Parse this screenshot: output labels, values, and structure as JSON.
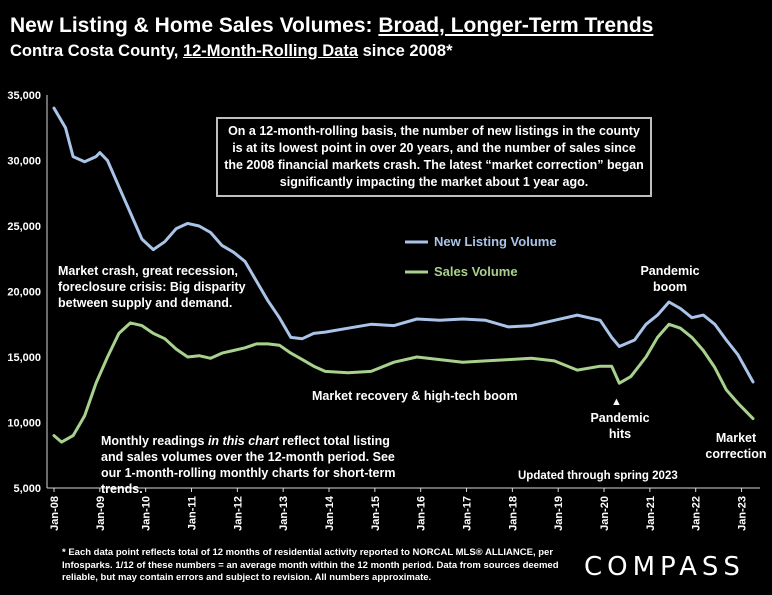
{
  "header": {
    "title_prefix": "New Listing & Home Sales Volumes: ",
    "title_underlined": "Broad, Longer-Term Trends",
    "subtitle_prefix": "Contra Costa County, ",
    "subtitle_underlined": "12-Month-Rolling Data",
    "subtitle_suffix": " since 2008*"
  },
  "annotations": {
    "box_note": "On a 12-month-rolling basis, the number of new listings in the county is at its lowest point in over 20 years, and the number of sales since the 2008 financial markets crash. The latest “market correction” began significantly impacting the market about 1 year ago.",
    "market_crash": "Market crash,  great recession, foreclosure crisis: Big disparity between supply and demand.",
    "recovery": "Market recovery & high-tech boom",
    "pandemic_hits": "Pandemic hits",
    "pandemic_boom": "Pandemic boom",
    "market_correction": "Market correction",
    "monthly_prefix": "Monthly readings ",
    "monthly_italic": "in this chart",
    "monthly_suffix": " reflect total listing and sales volumes over the 12-month period. See our 1-month-rolling monthly charts for short-term trends.",
    "updated": "Updated through spring 2023",
    "arrow": "▲"
  },
  "footnote": "* Each data point reflects total of 12 months of residential activity reported to NORCAL MLS® ALLIANCE, per Infosparks. 1/12 of these numbers = an average month within the 12 month period. Data from sources deemed reliable, but may contain errors and subject to revision. All numbers approximate.",
  "logo": "COMPASS",
  "colors": {
    "listings": "#a9c4e8",
    "sales": "#a9d18e",
    "background": "#000000",
    "text": "#ffffff"
  },
  "chart_data": {
    "type": "line",
    "ylim": [
      5000,
      35000
    ],
    "yticks": [
      "5,000",
      "10,000",
      "15,000",
      "20,000",
      "25,000",
      "30,000",
      "35,000"
    ],
    "ytick_values": [
      5000,
      10000,
      15000,
      20000,
      25000,
      30000,
      35000
    ],
    "xticks": [
      "Jan-08",
      "Jan-09",
      "Jan-10",
      "Jan-11",
      "Jan-12",
      "Jan-13",
      "Jan-14",
      "Jan-15",
      "Jan-16",
      "Jan-17",
      "Jan-18",
      "Jan-19",
      "Jan-20",
      "Jan-21",
      "Jan-22",
      "Jan-23"
    ],
    "x_start": "Jan-08",
    "x_end": "Apr-23",
    "legend": "upper-right",
    "series": [
      {
        "name": "New Listing Volume",
        "color": "#a9c4e8",
        "points": [
          [
            "Jan-08",
            34000
          ],
          [
            "Apr-08",
            32500
          ],
          [
            "Jun-08",
            30300
          ],
          [
            "Sep-08",
            29900
          ],
          [
            "Dec-08",
            30300
          ],
          [
            "Jan-09",
            30600
          ],
          [
            "Mar-09",
            30000
          ],
          [
            "Jun-09",
            28000
          ],
          [
            "Sep-09",
            26000
          ],
          [
            "Dec-09",
            24000
          ],
          [
            "Mar-10",
            23200
          ],
          [
            "Jun-10",
            23800
          ],
          [
            "Sep-10",
            24800
          ],
          [
            "Dec-10",
            25200
          ],
          [
            "Mar-11",
            25000
          ],
          [
            "Jun-11",
            24500
          ],
          [
            "Sep-11",
            23500
          ],
          [
            "Dec-11",
            23000
          ],
          [
            "Mar-12",
            22300
          ],
          [
            "Jun-12",
            20800
          ],
          [
            "Sep-12",
            19300
          ],
          [
            "Dec-12",
            18000
          ],
          [
            "Mar-13",
            16500
          ],
          [
            "Jun-13",
            16400
          ],
          [
            "Sep-13",
            16800
          ],
          [
            "Dec-13",
            16900
          ],
          [
            "Jun-14",
            17200
          ],
          [
            "Dec-14",
            17500
          ],
          [
            "Jun-15",
            17400
          ],
          [
            "Dec-15",
            17900
          ],
          [
            "Jun-16",
            17800
          ],
          [
            "Dec-16",
            17900
          ],
          [
            "Jun-17",
            17800
          ],
          [
            "Dec-17",
            17300
          ],
          [
            "Jun-18",
            17400
          ],
          [
            "Dec-18",
            17800
          ],
          [
            "Jun-19",
            18200
          ],
          [
            "Dec-19",
            17800
          ],
          [
            "Mar-20",
            16500
          ],
          [
            "May-20",
            15800
          ],
          [
            "Sep-20",
            16300
          ],
          [
            "Dec-20",
            17500
          ],
          [
            "Mar-21",
            18200
          ],
          [
            "Jun-21",
            19200
          ],
          [
            "Sep-21",
            18700
          ],
          [
            "Dec-21",
            18000
          ],
          [
            "Mar-22",
            18200
          ],
          [
            "Jun-22",
            17500
          ],
          [
            "Sep-22",
            16300
          ],
          [
            "Dec-22",
            15200
          ],
          [
            "Apr-23",
            13100
          ]
        ]
      },
      {
        "name": "Sales Volume",
        "color": "#a9d18e",
        "points": [
          [
            "Jan-08",
            9000
          ],
          [
            "Mar-08",
            8500
          ],
          [
            "Jun-08",
            9000
          ],
          [
            "Sep-08",
            10500
          ],
          [
            "Dec-08",
            13000
          ],
          [
            "Mar-09",
            15000
          ],
          [
            "Jun-09",
            16800
          ],
          [
            "Sep-09",
            17600
          ],
          [
            "Dec-09",
            17400
          ],
          [
            "Mar-10",
            16800
          ],
          [
            "Jun-10",
            16400
          ],
          [
            "Sep-10",
            15600
          ],
          [
            "Dec-10",
            15000
          ],
          [
            "Mar-11",
            15100
          ],
          [
            "Jun-11",
            14900
          ],
          [
            "Sep-11",
            15300
          ],
          [
            "Dec-11",
            15500
          ],
          [
            "Mar-12",
            15700
          ],
          [
            "Jun-12",
            16000
          ],
          [
            "Sep-12",
            16000
          ],
          [
            "Dec-12",
            15900
          ],
          [
            "Mar-13",
            15300
          ],
          [
            "Jun-13",
            14800
          ],
          [
            "Sep-13",
            14300
          ],
          [
            "Dec-13",
            13900
          ],
          [
            "Jun-14",
            13800
          ],
          [
            "Dec-14",
            13900
          ],
          [
            "Jun-15",
            14600
          ],
          [
            "Dec-15",
            15000
          ],
          [
            "Jun-16",
            14800
          ],
          [
            "Dec-16",
            14600
          ],
          [
            "Jun-17",
            14700
          ],
          [
            "Dec-17",
            14800
          ],
          [
            "Jun-18",
            14900
          ],
          [
            "Dec-18",
            14700
          ],
          [
            "Jun-19",
            14000
          ],
          [
            "Dec-19",
            14300
          ],
          [
            "Mar-20",
            14300
          ],
          [
            "May-20",
            13000
          ],
          [
            "Aug-20",
            13500
          ],
          [
            "Dec-20",
            15000
          ],
          [
            "Mar-21",
            16500
          ],
          [
            "Jun-21",
            17500
          ],
          [
            "Sep-21",
            17200
          ],
          [
            "Dec-21",
            16500
          ],
          [
            "Mar-22",
            15500
          ],
          [
            "Jun-22",
            14200
          ],
          [
            "Sep-22",
            12500
          ],
          [
            "Dec-22",
            11500
          ],
          [
            "Apr-23",
            10300
          ]
        ]
      }
    ]
  }
}
